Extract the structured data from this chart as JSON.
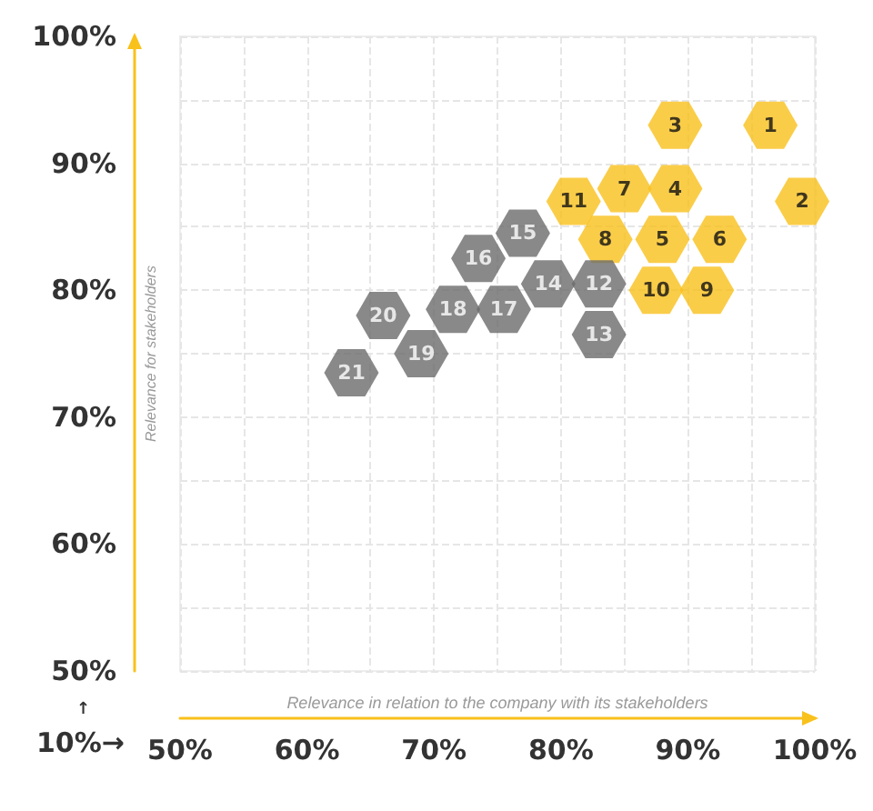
{
  "chart_data": {
    "type": "scatter",
    "xlabel": "Relevance in relation to the company with its stakeholders",
    "ylabel": "Relevance for stakeholders",
    "xlim": [
      50,
      100
    ],
    "xticks": [
      {
        "value": 50,
        "label": "50%"
      },
      {
        "value": 60,
        "label": "60%"
      },
      {
        "value": 70,
        "label": "70%"
      },
      {
        "value": 80,
        "label": "80%"
      },
      {
        "value": 90,
        "label": "90%"
      },
      {
        "value": 100,
        "label": "100%"
      }
    ],
    "ylim": [
      50,
      100
    ],
    "yticks": [
      {
        "value": 50,
        "label": "50%"
      },
      {
        "value": 60,
        "label": "60%"
      },
      {
        "value": 70,
        "label": "70%"
      },
      {
        "value": 80,
        "label": "80%"
      },
      {
        "value": 90,
        "label": "90%"
      },
      {
        "value": 100,
        "label": "100%"
      }
    ],
    "grid": true,
    "annotations": [
      "↑",
      "10%→",
      {
        "text": "1",
        "x": 96.5,
        "y": 93
      },
      {
        "text": "2",
        "x": 99,
        "y": 87
      },
      {
        "text": "3",
        "x": 89,
        "y": 93
      },
      {
        "text": "4",
        "x": 89,
        "y": 88
      },
      {
        "text": "5",
        "x": 88,
        "y": 84
      },
      {
        "text": "6",
        "x": 92.5,
        "y": 84
      },
      {
        "text": "7",
        "x": 85,
        "y": 88
      },
      {
        "text": "8",
        "x": 83.5,
        "y": 84
      },
      {
        "text": "9",
        "x": 91.5,
        "y": 80
      },
      {
        "text": "10",
        "x": 87.5,
        "y": 80
      },
      {
        "text": "11",
        "x": 81,
        "y": 87
      },
      {
        "text": "12",
        "x": 83,
        "y": 80.5
      },
      {
        "text": "13",
        "x": 83,
        "y": 76.5
      },
      {
        "text": "14",
        "x": 79,
        "y": 80.5
      },
      {
        "text": "15",
        "x": 77,
        "y": 84.5
      },
      {
        "text": "16",
        "x": 73.5,
        "y": 82.5
      },
      {
        "text": "17",
        "x": 75.5,
        "y": 78.5
      },
      {
        "text": "18",
        "x": 71.5,
        "y": 78.5
      },
      {
        "text": "19",
        "x": 69,
        "y": 75
      },
      {
        "text": "20",
        "x": 66,
        "y": 78
      },
      {
        "text": "21",
        "x": 63.5,
        "y": 73.5
      }
    ],
    "series": [
      {
        "color": "#f9c11c",
        "x": [
          96.5,
          99,
          89,
          89,
          88,
          92.5,
          85,
          83.5,
          91.5,
          87.5,
          81
        ],
        "values": [
          93,
          87,
          93,
          88,
          84,
          84,
          88,
          84,
          80,
          80,
          87
        ]
      },
      {
        "color": "#6b6b6b",
        "x": [
          83,
          83,
          79,
          77,
          73.5,
          75.5,
          71.5,
          69,
          66,
          63.5
        ],
        "values": [
          80.5,
          76.5,
          80.5,
          84.5,
          82.5,
          78.5,
          78.5,
          75,
          78,
          73.5
        ]
      }
    ]
  }
}
